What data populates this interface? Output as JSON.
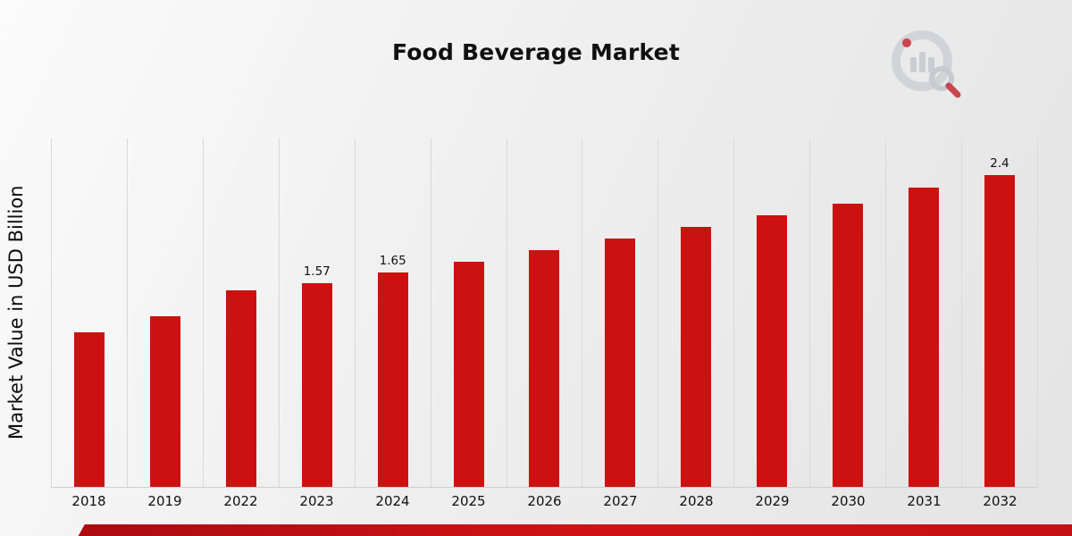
{
  "chart_data": {
    "type": "bar",
    "title": "Food Beverage Market",
    "ylabel": "Market Value in USD Billion",
    "xlabel": "",
    "categories": [
      "2018",
      "2019",
      "2022",
      "2023",
      "2024",
      "2025",
      "2026",
      "2027",
      "2028",
      "2029",
      "2030",
      "2031",
      "2032"
    ],
    "values": [
      1.19,
      1.31,
      1.51,
      1.57,
      1.65,
      1.73,
      1.82,
      1.91,
      2.0,
      2.09,
      2.18,
      2.3,
      2.4
    ],
    "bar_labels": [
      "",
      "",
      "",
      "1.57",
      "1.65",
      "",
      "",
      "",
      "",
      "",
      "",
      "",
      "2.4"
    ],
    "ylim": [
      0,
      2.68
    ],
    "bar_color": "#cc1111",
    "grid": "vertical category separator lines",
    "legend": "none"
  },
  "branding": {
    "logo_icon": "bar-chart-magnifier-logo",
    "accent_color": "#c31014"
  }
}
